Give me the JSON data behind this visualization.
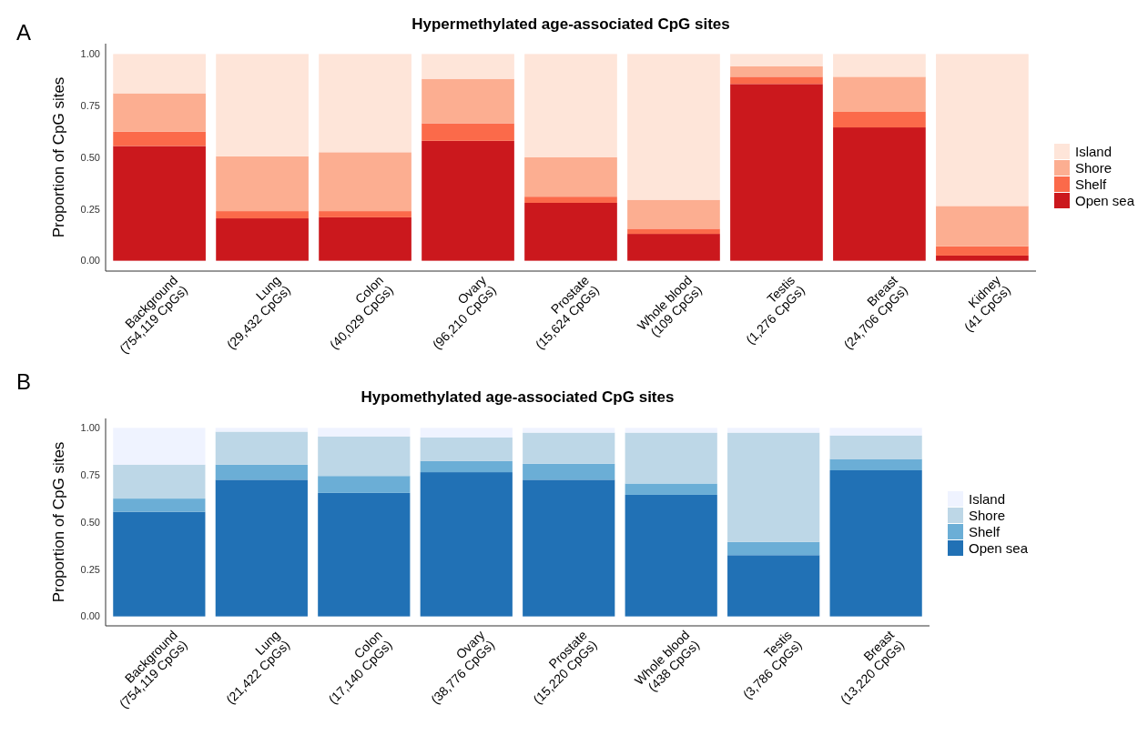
{
  "chart_data": [
    {
      "type": "bar",
      "stacked": true,
      "title": "Hypermethylated age-associated CpG sites",
      "ylabel": "Proportion of CpG sites",
      "annotations": [
        "A"
      ],
      "legend": "right",
      "grid": false,
      "categories": [
        "Background\n(754,119 CpGs)",
        "Lung\n(29,432 CpGs)",
        "Colon\n(40,029 CpGs)",
        "Ovary\n(96,210 CpGs)",
        "Prostate\n(15,624 CpGs)",
        "Whole blood\n(109 CpGs)",
        "Testis\n(1,276 CpGs)",
        "Breast\n(24,706 CpGs)",
        "Kidney\n(41 CpGs)"
      ],
      "ylim": [
        -0.05,
        1.05
      ],
      "yticks": [
        {
          "value": 0,
          "label": "0.00"
        },
        {
          "value": 0.25,
          "label": "0.25"
        },
        {
          "value": 0.5,
          "label": "0.50"
        },
        {
          "value": 0.75,
          "label": "0.75"
        },
        {
          "value": 1,
          "label": "1.00"
        }
      ],
      "series": [
        {
          "name": "Open sea",
          "color": "#cb181d",
          "values": [
            0.555,
            0.205,
            0.21,
            0.58,
            0.28,
            0.13,
            0.855,
            0.645,
            0.025
          ]
        },
        {
          "name": "Shelf",
          "color": "#fb6a4a",
          "values": [
            0.07,
            0.035,
            0.03,
            0.085,
            0.03,
            0.025,
            0.035,
            0.075,
            0.045
          ]
        },
        {
          "name": "Shore",
          "color": "#fcae91",
          "values": [
            0.185,
            0.265,
            0.285,
            0.215,
            0.19,
            0.14,
            0.05,
            0.17,
            0.195
          ]
        },
        {
          "name": "Island",
          "color": "#fee5d9",
          "values": [
            0.19,
            0.495,
            0.475,
            0.12,
            0.5,
            0.705,
            0.06,
            0.11,
            0.735
          ]
        }
      ]
    },
    {
      "type": "bar",
      "stacked": true,
      "title": "Hypomethylated age-associated CpG sites",
      "ylabel": "Proportion of CpG sites",
      "annotations": [
        "B"
      ],
      "legend": "right",
      "grid": false,
      "categories": [
        "Background\n(754,119 CpGs)",
        "Lung\n(21,422 CpGs)",
        "Colon\n(17,140 CpGs)",
        "Ovary\n(38,776 CpGs)",
        "Prostate\n(15,220 CpGs)",
        "Whole blood\n(438 CpGs)",
        "Testis\n(3,786 CpGs)",
        "Breast\n(13,220 CpGs)"
      ],
      "ylim": [
        -0.05,
        1.05
      ],
      "yticks": [
        {
          "value": 0,
          "label": "0.00"
        },
        {
          "value": 0.25,
          "label": "0.25"
        },
        {
          "value": 0.5,
          "label": "0.50"
        },
        {
          "value": 0.75,
          "label": "0.75"
        },
        {
          "value": 1,
          "label": "1.00"
        }
      ],
      "series": [
        {
          "name": "Open sea",
          "color": "#2171b5",
          "values": [
            0.555,
            0.725,
            0.655,
            0.765,
            0.725,
            0.645,
            0.325,
            0.775
          ]
        },
        {
          "name": "Shelf",
          "color": "#6baed6",
          "values": [
            0.07,
            0.08,
            0.09,
            0.06,
            0.085,
            0.06,
            0.07,
            0.06
          ]
        },
        {
          "name": "Shore",
          "color": "#bdd7e7",
          "values": [
            0.18,
            0.175,
            0.21,
            0.125,
            0.165,
            0.27,
            0.58,
            0.125
          ]
        },
        {
          "name": "Island",
          "color": "#eff3ff",
          "values": [
            0.195,
            0.02,
            0.045,
            0.05,
            0.025,
            0.025,
            0.025,
            0.04
          ]
        }
      ]
    }
  ]
}
